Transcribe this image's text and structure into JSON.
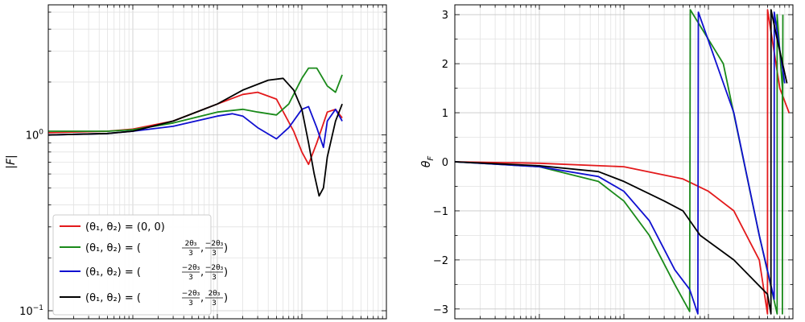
{
  "chart_data": [
    {
      "type": "line",
      "ylabel": "|F|",
      "yscale": "log",
      "xscale": "log",
      "xlim": [
        0.01,
        100
      ],
      "ylim": [
        0.09,
        5.5
      ],
      "yticks": [
        {
          "value": 1,
          "base": "10",
          "exp": "0"
        },
        {
          "value": 0.1,
          "base": "10",
          "exp": "−1"
        }
      ],
      "grid": true,
      "legend": "lower-left",
      "series": [
        {
          "color": "#e31a1c",
          "points": [
            [
              0.01,
              1.03
            ],
            [
              0.05,
              1.05
            ],
            [
              0.1,
              1.08
            ],
            [
              0.3,
              1.2
            ],
            [
              1,
              1.5
            ],
            [
              2,
              1.7
            ],
            [
              3,
              1.75
            ],
            [
              5,
              1.6
            ],
            [
              8,
              1.05
            ],
            [
              10,
              0.8
            ],
            [
              12,
              0.68
            ],
            [
              15,
              0.9
            ],
            [
              20,
              1.35
            ],
            [
              25,
              1.4
            ],
            [
              30,
              1.25
            ]
          ]
        },
        {
          "color": "#1a8a1a",
          "points": [
            [
              0.01,
              1.05
            ],
            [
              0.05,
              1.05
            ],
            [
              0.1,
              1.07
            ],
            [
              0.3,
              1.17
            ],
            [
              1,
              1.35
            ],
            [
              2,
              1.4
            ],
            [
              3,
              1.35
            ],
            [
              5,
              1.3
            ],
            [
              7,
              1.5
            ],
            [
              10,
              2.1
            ],
            [
              12,
              2.4
            ],
            [
              15,
              2.4
            ],
            [
              20,
              1.9
            ],
            [
              25,
              1.75
            ],
            [
              30,
              2.2
            ]
          ]
        },
        {
          "color": "#1010d0",
          "points": [
            [
              0.01,
              1.0
            ],
            [
              0.05,
              1.02
            ],
            [
              0.1,
              1.05
            ],
            [
              0.3,
              1.12
            ],
            [
              1,
              1.28
            ],
            [
              1.5,
              1.32
            ],
            [
              2,
              1.28
            ],
            [
              3,
              1.1
            ],
            [
              5,
              0.95
            ],
            [
              7,
              1.1
            ],
            [
              10,
              1.4
            ],
            [
              12,
              1.45
            ],
            [
              15,
              1.1
            ],
            [
              18,
              0.85
            ],
            [
              20,
              1.2
            ],
            [
              25,
              1.4
            ],
            [
              30,
              1.2
            ]
          ]
        },
        {
          "color": "#000000",
          "points": [
            [
              0.01,
              1.0
            ],
            [
              0.05,
              1.02
            ],
            [
              0.1,
              1.05
            ],
            [
              0.3,
              1.2
            ],
            [
              1,
              1.5
            ],
            [
              2,
              1.8
            ],
            [
              4,
              2.05
            ],
            [
              6,
              2.1
            ],
            [
              8,
              1.8
            ],
            [
              10,
              1.4
            ],
            [
              12,
              0.9
            ],
            [
              14,
              0.6
            ],
            [
              16,
              0.45
            ],
            [
              18,
              0.5
            ],
            [
              20,
              0.75
            ],
            [
              25,
              1.2
            ],
            [
              30,
              1.5
            ]
          ]
        }
      ],
      "legend_entries": [
        {
          "color": "#e31a1c",
          "label": "(θ₁, θ₂) = (0, 0)"
        },
        {
          "color": "#1a8a1a",
          "label": "(θ₁, θ₂) = (2θ₃/3, −2θ₃/3)",
          "num1": "2θ₃",
          "num2": "−2θ₃"
        },
        {
          "color": "#1010d0",
          "label": "(θ₁, θ₂) = (−2θ₃/3, −2θ₃/3)",
          "num1": "−2θ₃",
          "num2": "−2θ₃"
        },
        {
          "color": "#000000",
          "label": "(θ₁, θ₂) = (−2θ₃/3, 2θ₃/3)",
          "num1": "−2θ₃",
          "num2": "2θ₃"
        }
      ]
    },
    {
      "type": "line",
      "ylabel": "θ_F",
      "xscale": "log",
      "xlim": [
        0.01,
        100
      ],
      "ylim": [
        -3.2,
        3.2
      ],
      "yticks": [
        3,
        2,
        1,
        0,
        -1,
        -2,
        -3
      ],
      "ytick_labels": [
        "3",
        "2",
        "1",
        "0",
        "−1",
        "−2",
        "−3"
      ],
      "grid": true,
      "series": [
        {
          "color": "#e31a1c",
          "points": [
            [
              0.01,
              0
            ],
            [
              0.1,
              -0.03
            ],
            [
              1,
              -0.1
            ],
            [
              5,
              -0.35
            ],
            [
              10,
              -0.6
            ],
            [
              20,
              -1.0
            ],
            [
              40,
              -2.0
            ],
            [
              50,
              -3.1
            ],
            [
              50.1,
              3.1
            ],
            [
              70,
              1.5
            ],
            [
              90,
              1.0
            ]
          ]
        },
        {
          "color": "#1a8a1a",
          "points": [
            [
              0.01,
              0
            ],
            [
              0.1,
              -0.1
            ],
            [
              0.5,
              -0.4
            ],
            [
              1,
              -0.8
            ],
            [
              2,
              -1.5
            ],
            [
              4,
              -2.5
            ],
            [
              6,
              -3.05
            ],
            [
              6.1,
              3.1
            ],
            [
              15,
              2.0
            ],
            [
              40,
              -1.5
            ],
            [
              65,
              -3.1
            ],
            [
              65.1,
              3.0
            ],
            [
              75,
              1.5
            ],
            [
              75.1,
              -3.1
            ],
            [
              76,
              3.0
            ]
          ]
        },
        {
          "color": "#1010d0",
          "points": [
            [
              0.01,
              0
            ],
            [
              0.1,
              -0.1
            ],
            [
              0.5,
              -0.3
            ],
            [
              1,
              -0.6
            ],
            [
              2,
              -1.2
            ],
            [
              4,
              -2.2
            ],
            [
              6,
              -2.6
            ],
            [
              7.5,
              -3.1
            ],
            [
              7.6,
              3.05
            ],
            [
              20,
              1.0
            ],
            [
              40,
              -1.5
            ],
            [
              60,
              -2.8
            ],
            [
              60.1,
              3.05
            ],
            [
              80,
              1.6
            ]
          ]
        },
        {
          "color": "#000000",
          "points": [
            [
              0.01,
              0
            ],
            [
              0.1,
              -0.08
            ],
            [
              0.5,
              -0.2
            ],
            [
              1,
              -0.4
            ],
            [
              3,
              -0.8
            ],
            [
              5,
              -1.0
            ],
            [
              8,
              -1.5
            ],
            [
              20,
              -2.0
            ],
            [
              50,
              -2.7
            ],
            [
              55,
              -3.1
            ],
            [
              55.1,
              3.1
            ],
            [
              65,
              2.5
            ],
            [
              85,
              1.6
            ]
          ]
        }
      ]
    }
  ]
}
